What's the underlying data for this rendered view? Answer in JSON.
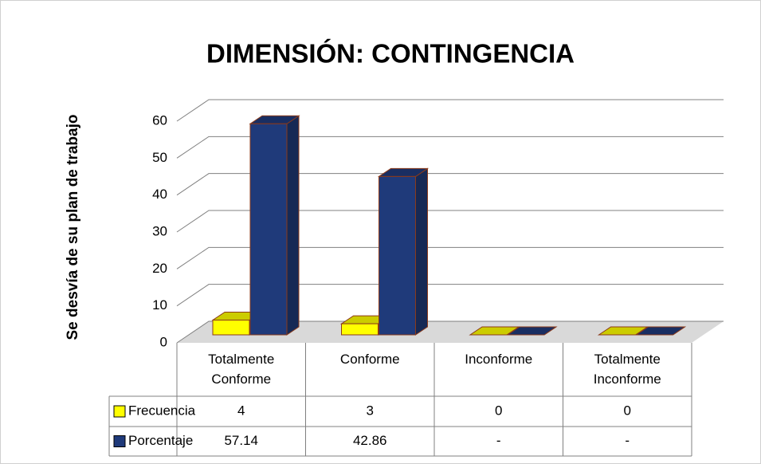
{
  "chart_data": {
    "type": "bar3d",
    "title": "DIMENSIÓN: CONTINGENCIA",
    "y_label": "Se desvía de su plan de trabajo",
    "categories": [
      "Totalmente Conforme",
      "Conforme",
      "Inconforme",
      "Totalmente Inconforme"
    ],
    "series": [
      {
        "name": "Frecuencia",
        "color": "#ffff00",
        "values": [
          4,
          3,
          0,
          0
        ]
      },
      {
        "name": "Porcentaje",
        "color": "#1f3a7a",
        "values": [
          57.14,
          42.86,
          0,
          0
        ],
        "value_labels": [
          "57.14",
          "42.86",
          "-",
          "-"
        ]
      }
    ],
    "ylim": [
      0,
      60
    ],
    "yticks": [
      0,
      10,
      20,
      30,
      40,
      50,
      60
    ],
    "grid": true
  }
}
